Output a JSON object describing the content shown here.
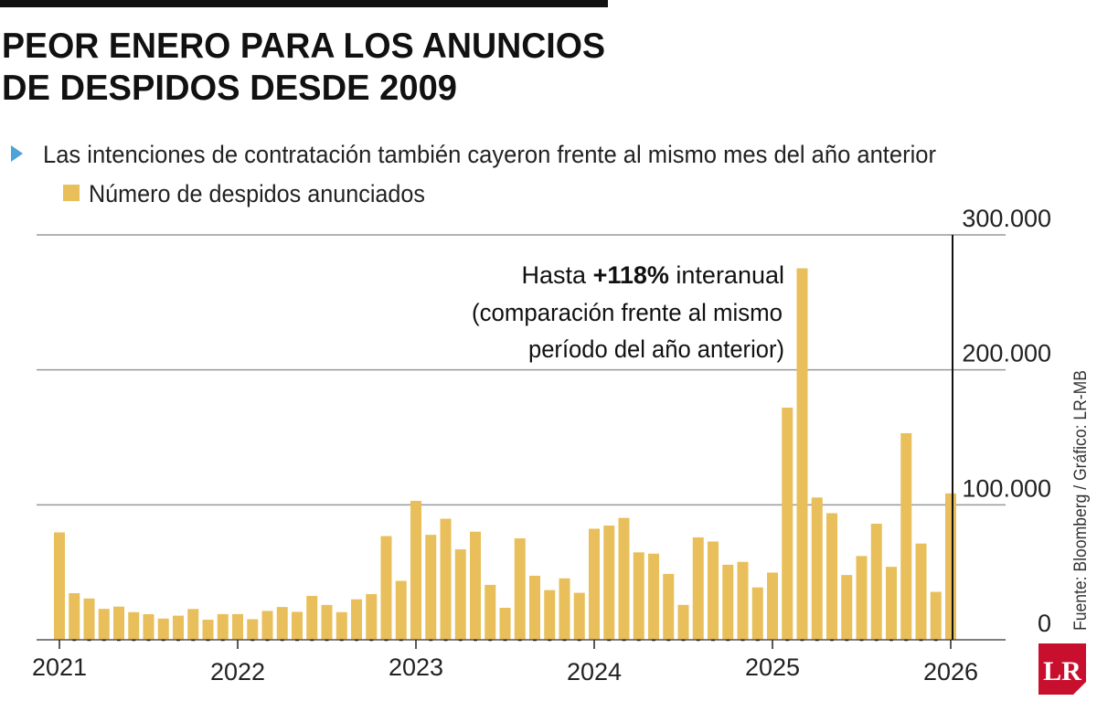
{
  "chart_data": {
    "type": "bar",
    "title": "PEOR ENERO PARA LOS ANUNCIOS DE DESPIDOS DESDE 2009",
    "title_lines": [
      "PEOR ENERO PARA LOS ANUNCIOS",
      "DE DESPIDOS DESDE 2009"
    ],
    "subtitle": "Las intenciones de contratación también cayeron frente al mismo mes del año anterior",
    "series": [
      {
        "name": "Número de despidos anunciados",
        "color": "#E8BF5A",
        "start": "2021-01",
        "frequency": "monthly",
        "values": [
          79552,
          34531,
          30603,
          22913,
          24586,
          20476,
          18942,
          15723,
          17895,
          22822,
          14875,
          19052,
          19064,
          15245,
          21387,
          24286,
          20712,
          32517,
          25810,
          20485,
          29989,
          33843,
          76835,
          43651,
          102943,
          77770,
          89703,
          66995,
          80089,
          40709,
          23697,
          75151,
          47457,
          36836,
          45510,
          34817,
          82307,
          84638,
          90309,
          64789,
          63816,
          48786,
          25885,
          75891,
          72821,
          55597,
          57727,
          38792,
          49795,
          172017,
          275240,
          105441,
          93816,
          47999,
          62075,
          85979,
          54064,
          153074,
          71321,
          35553,
          108435
        ]
      }
    ],
    "x_tick_labels": [
      "2021",
      "2022",
      "2023",
      "2024",
      "2025",
      "2026"
    ],
    "y_tick_labels": [
      "300.000",
      "200.000",
      "100.000",
      "0"
    ],
    "y_ticks": [
      300000,
      200000,
      100000,
      0
    ],
    "ylim": [
      0,
      300000
    ],
    "grid": true,
    "y_axis_position": "right",
    "legend_placement": "top-left",
    "annotation": {
      "prefix": "Hasta ",
      "bold": "+118%",
      "suffix": " interanual",
      "line2": "(comparación frente al mismo",
      "line3": "período del año anterior)"
    },
    "source": "Fuente: Bloomberg / Gráfico: LR-MB",
    "logo": "LR",
    "colors": {
      "accent_triangle": "#4BA3D9",
      "logo_red": "#C8102E",
      "bar": "#E8BF5A"
    }
  }
}
